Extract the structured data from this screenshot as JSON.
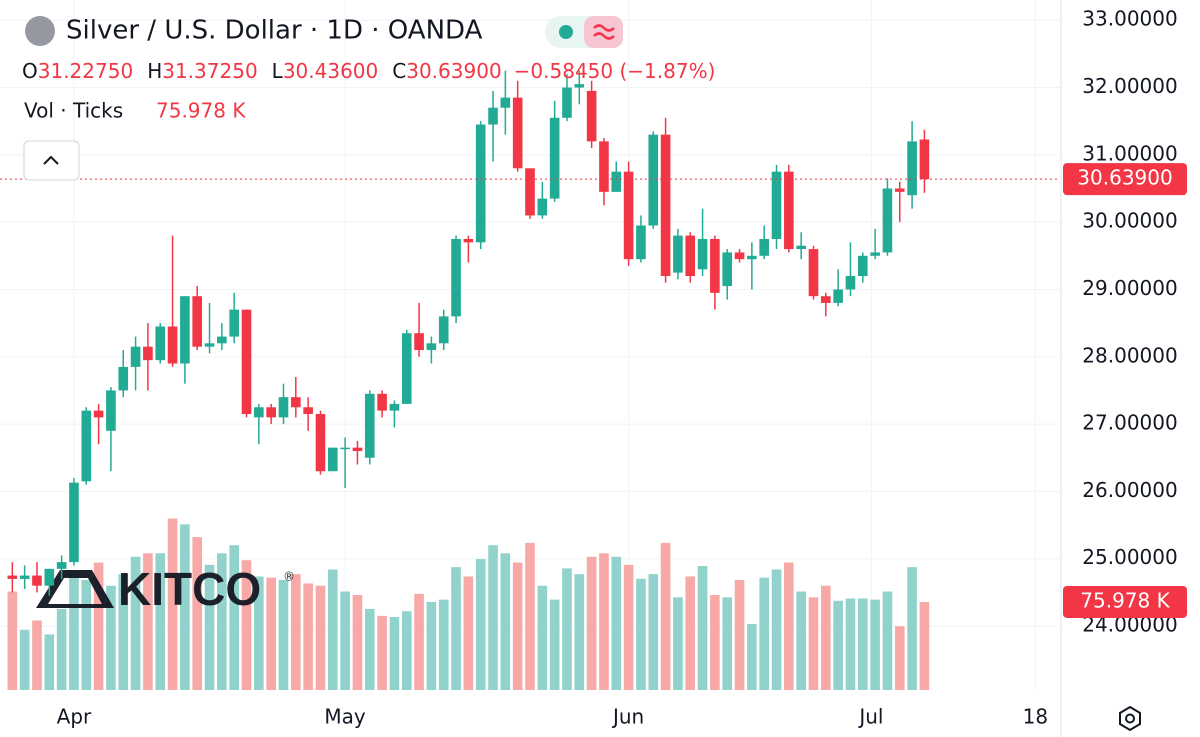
{
  "chart_data": {
    "type": "candlestick",
    "title": "Silver / U.S. Dollar · 1D · OANDA",
    "ohlc": [
      {
        "label": "O",
        "value": "31.22750"
      },
      {
        "label": "H",
        "value": "31.37250"
      },
      {
        "label": "L",
        "value": "30.43600"
      },
      {
        "label": "C",
        "value": "30.63900"
      }
    ],
    "change": "−0.58450 (−1.87%)",
    "volume_title": "Vol · Ticks",
    "volume_last": "75.978 K",
    "last_price_label": "30.63900",
    "watermark": "KITCO",
    "watermark_mark": "®",
    "up_color": "#22ab94",
    "down_color": "#f23645",
    "up_volume_color": "#92d2cc",
    "down_volume_color": "#f7a9a7",
    "open": [
      24.75,
      24.7,
      24.75,
      24.6,
      24.85,
      24.95,
      26.15,
      27.2,
      26.9,
      27.5,
      27.85,
      28.15,
      27.95,
      28.45,
      27.9,
      28.9,
      28.15,
      28.2,
      28.3,
      28.7,
      27.1,
      27.25,
      27.1,
      27.4,
      27.25,
      27.15,
      26.3,
      26.65,
      26.65,
      26.5,
      27.45,
      27.2,
      27.3,
      28.35,
      28.1,
      28.2,
      28.6,
      29.75,
      29.7,
      31.45,
      31.7,
      31.85,
      30.8,
      30.1,
      30.35,
      31.55,
      32.0,
      31.95,
      31.2,
      30.45,
      30.75,
      29.45,
      29.95,
      31.3,
      29.25,
      29.8,
      29.3,
      29.75,
      29.05,
      29.55,
      29.45,
      29.5,
      29.75,
      30.75,
      29.6,
      29.6,
      28.9,
      28.8,
      29.0,
      29.2,
      29.5,
      29.55,
      30.5,
      30.4,
      31.2275
    ],
    "high": [
      24.95,
      24.9,
      24.95,
      24.85,
      25.05,
      26.2,
      27.25,
      27.3,
      27.55,
      28.1,
      28.3,
      28.5,
      28.5,
      29.8,
      28.9,
      29.05,
      28.8,
      28.5,
      28.95,
      28.7,
      27.3,
      27.3,
      27.6,
      27.7,
      27.4,
      27.2,
      26.65,
      26.8,
      26.75,
      27.5,
      27.5,
      27.35,
      28.4,
      28.8,
      28.3,
      28.7,
      29.8,
      29.8,
      31.5,
      31.95,
      32.25,
      32.1,
      30.8,
      30.6,
      31.8,
      32.2,
      32.25,
      32.1,
      31.25,
      30.9,
      30.9,
      30.1,
      31.35,
      31.55,
      29.9,
      29.85,
      30.2,
      29.8,
      29.6,
      29.6,
      29.7,
      29.95,
      30.85,
      30.85,
      29.85,
      29.65,
      28.95,
      29.3,
      29.7,
      29.55,
      29.9,
      30.65,
      30.6,
      31.5,
      31.3725
    ],
    "low": [
      24.5,
      24.55,
      24.5,
      24.45,
      24.7,
      24.9,
      26.1,
      26.7,
      26.3,
      27.4,
      27.5,
      27.5,
      27.9,
      27.85,
      27.6,
      28.1,
      28.05,
      28.1,
      28.2,
      27.1,
      26.7,
      27.0,
      27.0,
      27.1,
      26.9,
      26.25,
      26.3,
      26.05,
      26.4,
      26.4,
      27.1,
      26.95,
      27.3,
      28.0,
      27.9,
      28.1,
      28.5,
      29.4,
      29.6,
      30.9,
      31.3,
      30.75,
      30.05,
      30.05,
      30.3,
      31.5,
      31.75,
      31.1,
      30.25,
      30.45,
      29.35,
      29.4,
      29.9,
      29.1,
      29.15,
      29.1,
      29.2,
      28.7,
      28.85,
      29.4,
      29.0,
      29.45,
      29.6,
      29.55,
      29.45,
      28.85,
      28.6,
      28.75,
      28.9,
      29.1,
      29.45,
      29.5,
      30.0,
      30.2,
      30.436
    ],
    "close": [
      24.7,
      24.75,
      24.6,
      24.85,
      24.95,
      26.13,
      27.2,
      27.1,
      27.5,
      27.85,
      28.15,
      27.95,
      28.45,
      27.9,
      28.9,
      28.15,
      28.2,
      28.3,
      28.7,
      27.15,
      27.25,
      27.1,
      27.4,
      27.25,
      27.15,
      26.3,
      26.65,
      26.65,
      26.6,
      27.45,
      27.2,
      27.3,
      28.35,
      28.1,
      28.2,
      28.6,
      29.75,
      29.7,
      31.45,
      31.7,
      31.85,
      30.8,
      30.1,
      30.35,
      31.55,
      32.0,
      32.05,
      31.2,
      30.45,
      30.75,
      29.45,
      29.95,
      31.3,
      29.2,
      29.8,
      29.2,
      29.75,
      28.95,
      29.55,
      29.45,
      29.5,
      29.75,
      30.75,
      29.6,
      29.65,
      28.9,
      28.8,
      29.0,
      29.2,
      29.5,
      29.55,
      30.5,
      30.45,
      31.2,
      30.639
    ],
    "volume": [
      85,
      52,
      60,
      48,
      70,
      100,
      95,
      110,
      90,
      100,
      115,
      118,
      118,
      148,
      143,
      132,
      108,
      118,
      125,
      112,
      98,
      97,
      95,
      100,
      92,
      90,
      104,
      85,
      82,
      70,
      64,
      63,
      68,
      83,
      76,
      78,
      106,
      98,
      113,
      125,
      118,
      110,
      127,
      90,
      78,
      105,
      100,
      115,
      118,
      115,
      108,
      96,
      100,
      127,
      80,
      98,
      107,
      82,
      80,
      95,
      57,
      97,
      104,
      110,
      85,
      80,
      90,
      77,
      79,
      79,
      78,
      85,
      55,
      106,
      75.978
    ],
    "volume_ylim": [
      0,
      164
    ],
    "xlim": [
      -1,
      85
    ],
    "xticks": [
      {
        "value": 5,
        "label": "Apr"
      },
      {
        "value": 27,
        "label": "May"
      },
      {
        "value": 50,
        "label": "Jun"
      },
      {
        "value": 69.7,
        "label": "Jul"
      },
      {
        "value": 83,
        "label": "18"
      }
    ],
    "ylim": [
      23.05,
      33.3
    ],
    "yticks": [
      {
        "value": 24,
        "label": "24.00000"
      },
      {
        "value": 25,
        "label": "25.00000"
      },
      {
        "value": 26,
        "label": "26.00000"
      },
      {
        "value": 27,
        "label": "27.00000"
      },
      {
        "value": 28,
        "label": "28.00000"
      },
      {
        "value": 29,
        "label": "29.00000"
      },
      {
        "value": 30,
        "label": "30.00000"
      },
      {
        "value": 31,
        "label": "31.00000"
      },
      {
        "value": 32,
        "label": "32.00000"
      },
      {
        "value": 33,
        "label": "33.00000"
      }
    ],
    "grid": true
  }
}
